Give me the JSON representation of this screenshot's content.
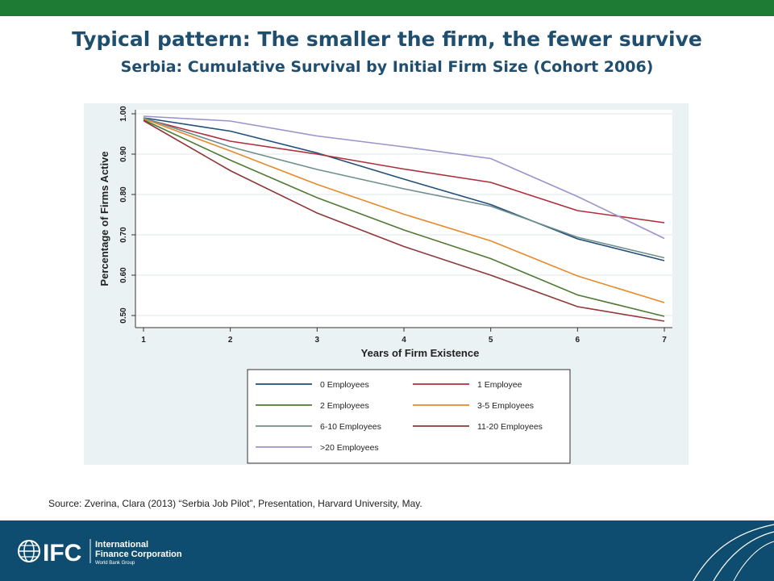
{
  "header": {
    "title": "Typical pattern: The smaller the firm, the fewer survive",
    "subtitle": "Serbia: Cumulative Survival by Initial Firm Size (Cohort 2006)"
  },
  "source": "Source: Zverina, Clara (2013) “Serbia Job Pilot”,  Presentation, Harvard University, May.",
  "footer": {
    "logo_text": "IFC",
    "org_line1": "International",
    "org_line2": "Finance Corporation",
    "org_line3": "World Bank Group",
    "colors": {
      "band": "#0e4d6f",
      "top_bar": "#1e7b34"
    }
  },
  "chart_data": {
    "type": "line",
    "title": "",
    "xlabel": "Years of Firm Existence",
    "ylabel": "Percentage of Firms Active",
    "x": [
      1,
      2,
      3,
      4,
      5,
      6,
      7
    ],
    "xlim": [
      1,
      7
    ],
    "ylim": [
      0.5,
      1.0
    ],
    "yticks": [
      "0.50",
      "0.60",
      "0.70",
      "0.80",
      "0.90",
      "1.00"
    ],
    "grid": true,
    "legend_position": "bottom",
    "series": [
      {
        "name": "0 Employees",
        "color": "#1f4e79",
        "values": [
          0.99,
          0.957,
          0.903,
          0.838,
          0.775,
          0.69,
          0.636
        ]
      },
      {
        "name": "1 Employee",
        "color": "#b02e3c",
        "values": [
          0.988,
          0.932,
          0.9,
          0.863,
          0.83,
          0.76,
          0.73
        ]
      },
      {
        "name": "2 Employees",
        "color": "#4e7a33",
        "values": [
          0.985,
          0.885,
          0.792,
          0.712,
          0.641,
          0.551,
          0.498
        ]
      },
      {
        "name": "3-5 Employees",
        "color": "#e8892c",
        "values": [
          0.988,
          0.908,
          0.825,
          0.751,
          0.685,
          0.598,
          0.532
        ]
      },
      {
        "name": "6-10 Employees",
        "color": "#6e8f8c",
        "values": [
          0.99,
          0.918,
          0.862,
          0.814,
          0.771,
          0.694,
          0.643
        ]
      },
      {
        "name": "11-20 Employees",
        "color": "#8f3838",
        "values": [
          0.983,
          0.859,
          0.754,
          0.671,
          0.6,
          0.522,
          0.486
        ]
      },
      {
        "name": ">20 Employees",
        "color": "#9a94cc",
        "values": [
          0.994,
          0.982,
          0.945,
          0.918,
          0.889,
          0.795,
          0.691
        ]
      }
    ]
  }
}
